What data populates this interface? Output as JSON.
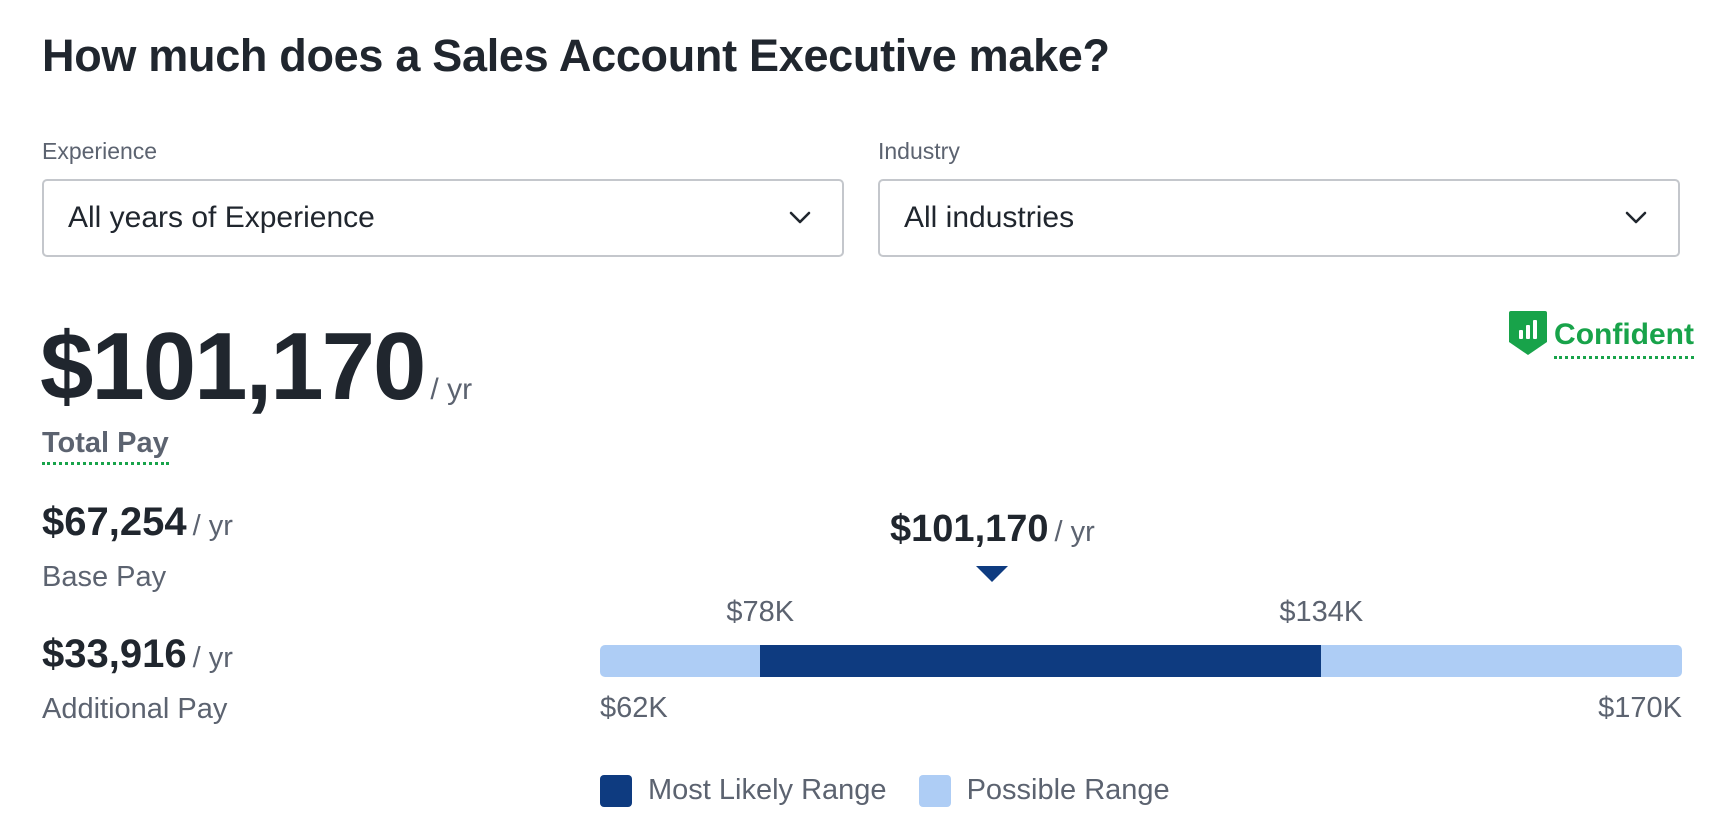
{
  "title": "How much does a Sales Account Executive make?",
  "filters": {
    "experience": {
      "label": "Experience",
      "value": "All years of Experience"
    },
    "industry": {
      "label": "Industry",
      "value": "All industries"
    }
  },
  "total_pay": {
    "amount": "$101,170",
    "unit": "/ yr",
    "label": "Total Pay"
  },
  "confidence": {
    "label": "Confident",
    "icon": "bar-chart-shield-icon",
    "color": "#18a34a"
  },
  "base_pay": {
    "amount": "$67,254",
    "unit": "/ yr",
    "label": "Base Pay"
  },
  "additional_pay": {
    "amount": "$33,916",
    "unit": "/ yr",
    "label": "Additional Pay"
  },
  "range": {
    "median_label": "$101,170",
    "median_unit": "/ yr",
    "likely_low_label": "$78K",
    "likely_high_label": "$134K",
    "min_label": "$62K",
    "max_label": "$170K",
    "legend_likely": "Most Likely Range",
    "legend_possible": "Possible Range",
    "colors": {
      "likely": "#0e3b80",
      "possible": "#aecdf5",
      "marker": "#0e3b80"
    }
  },
  "chart_data": {
    "type": "bar",
    "min": 62000,
    "max": 170000,
    "likely_low": 78000,
    "likely_high": 134000,
    "median": 101170,
    "series": [
      {
        "name": "Most Likely Range",
        "values": [
          78000,
          134000
        ]
      },
      {
        "name": "Possible Range",
        "values": [
          62000,
          170000
        ]
      }
    ]
  }
}
